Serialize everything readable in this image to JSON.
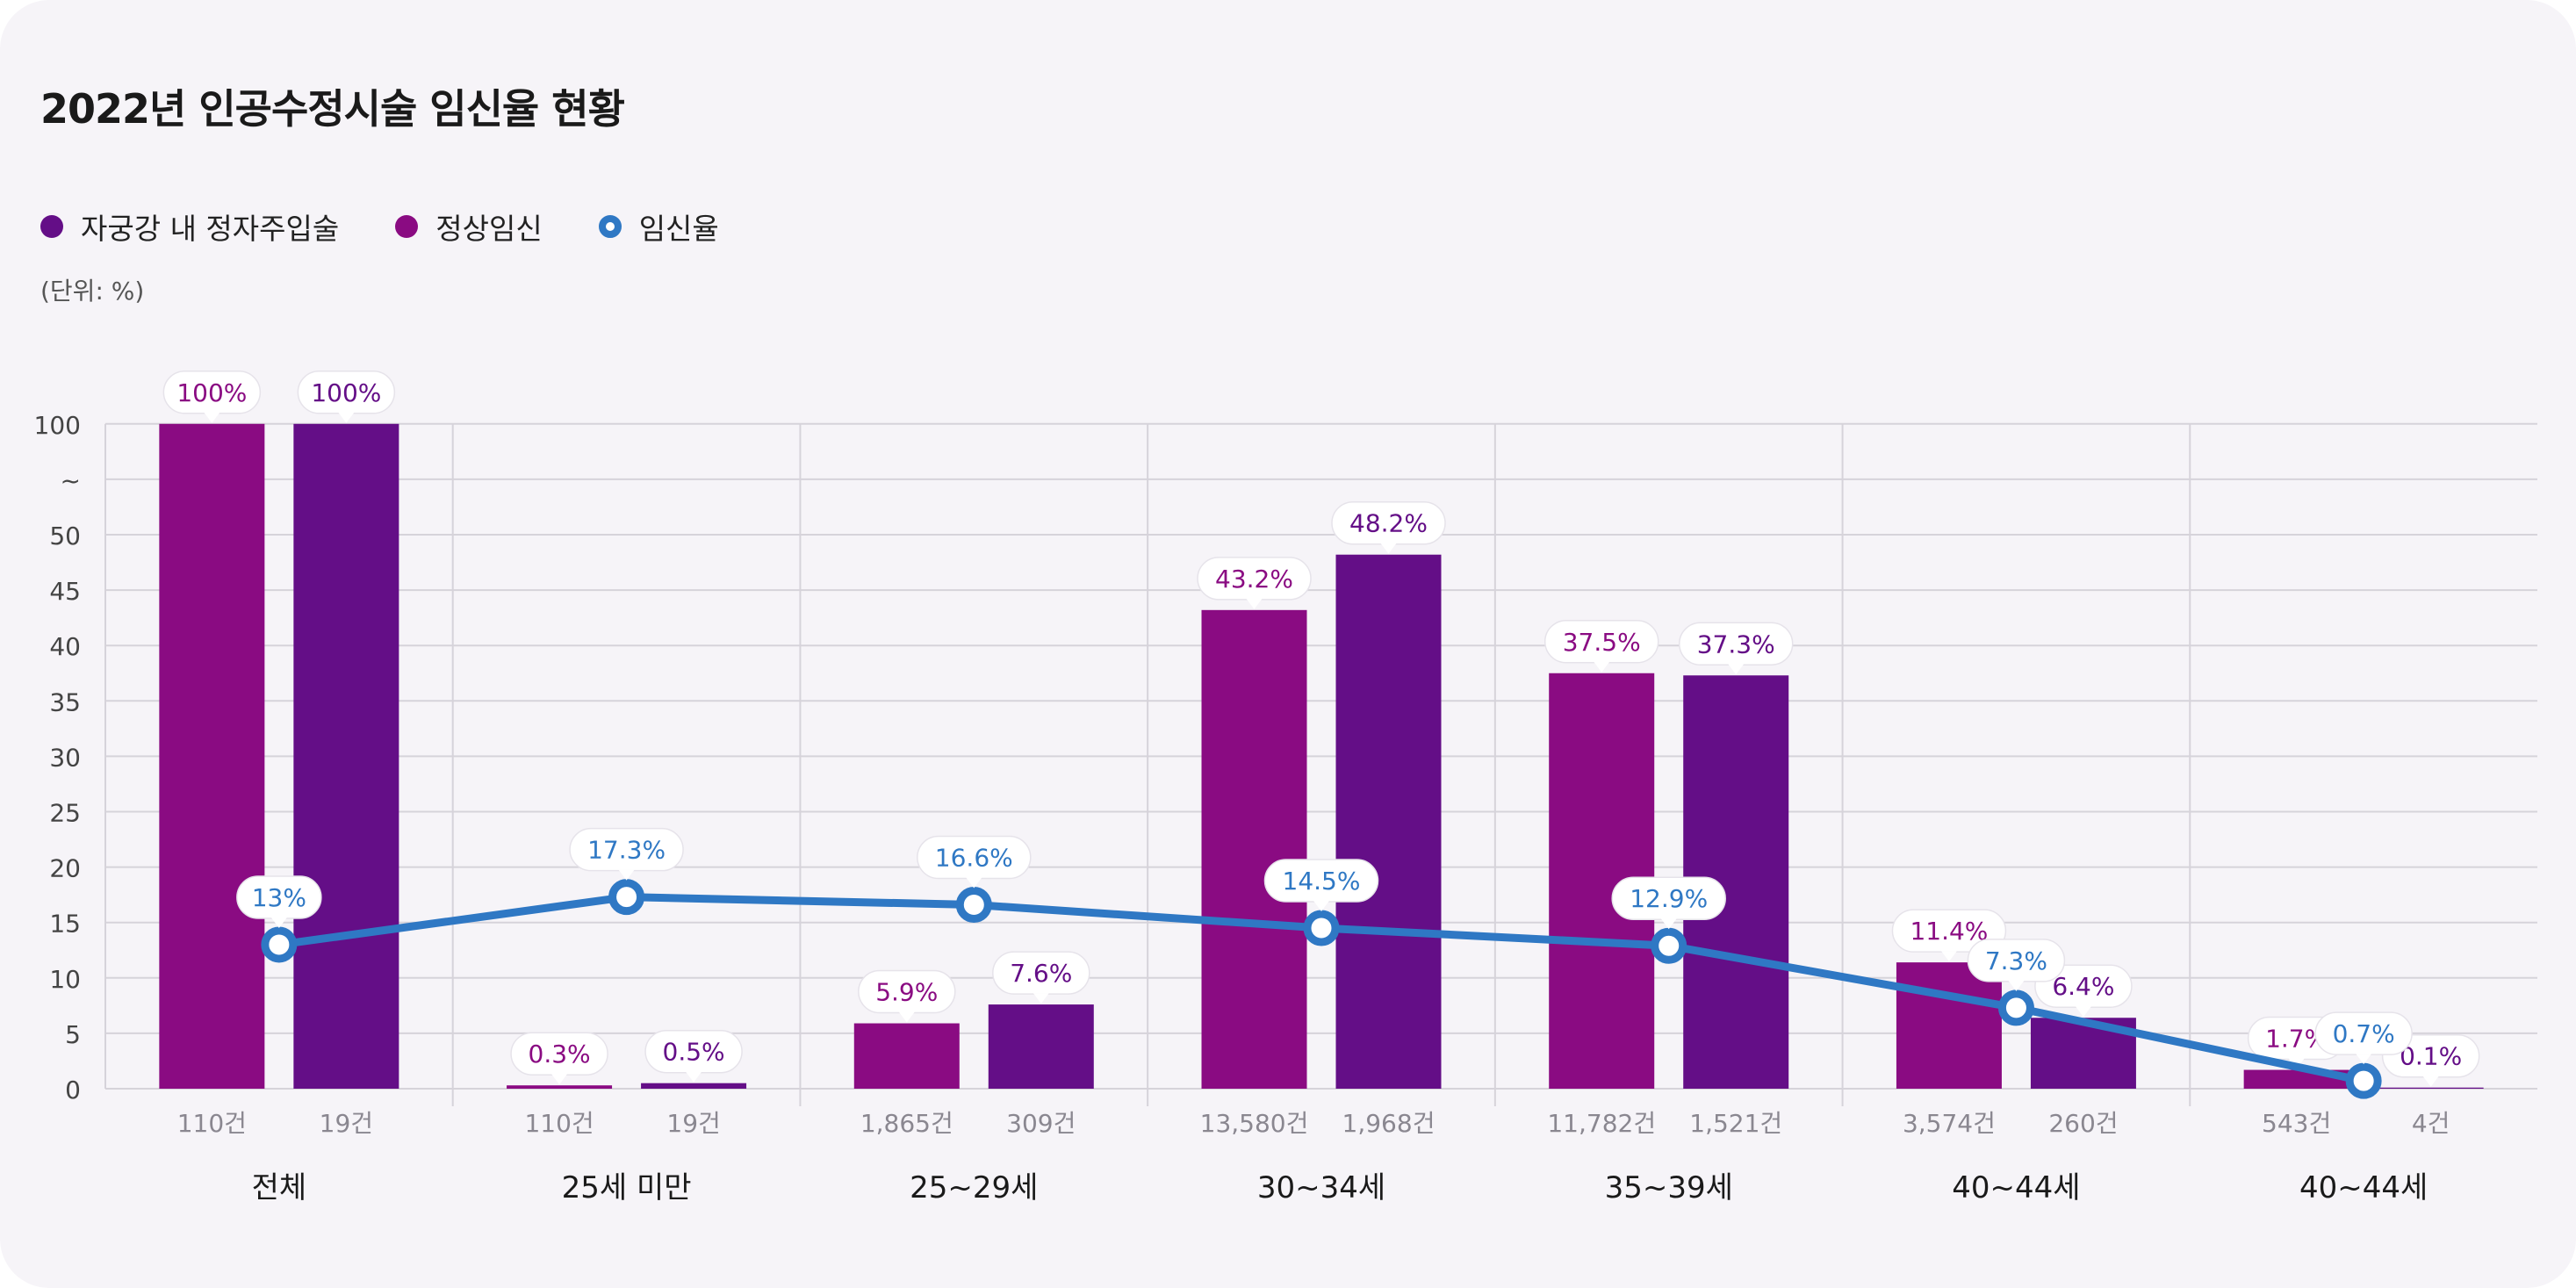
{
  "title": "2022년 인공수정시술 임신율 현황",
  "unit_label": "(단위: %)",
  "legend": [
    {
      "label": "자궁강 내 정자주입술",
      "color": "#640e87",
      "kind": "dot"
    },
    {
      "label": "정상임신",
      "color": "#8a0b82",
      "kind": "dot"
    },
    {
      "label": "임신율",
      "color": "#2f78c4",
      "kind": "ring"
    }
  ],
  "chart_data": {
    "type": "bar",
    "title": "2022년 인공수정시술 임신율 현황",
    "ylabel": "(단위: %)",
    "y_ticks": [
      "0",
      "5",
      "10",
      "15",
      "20",
      "25",
      "30",
      "35",
      "40",
      "45",
      "50",
      "~",
      "100"
    ],
    "categories": [
      "전체",
      "25세 미만",
      "25~29세",
      "30~34세",
      "35~39세",
      "40~44세",
      "40~44세"
    ],
    "series": [
      {
        "name": "정상임신",
        "color": "#8a0b82",
        "values": [
          100,
          0.3,
          5.9,
          43.2,
          37.5,
          11.4,
          1.7
        ],
        "labels": [
          "100%",
          "0.3%",
          "5.9%",
          "43.2%",
          "37.5%",
          "11.4%",
          "1.7%"
        ],
        "counts": [
          "110건",
          "110건",
          "1,865건",
          "13,580건",
          "11,782건",
          "3,574건",
          "543건"
        ]
      },
      {
        "name": "자궁강 내 정자주입술",
        "color": "#640e87",
        "values": [
          100,
          0.5,
          7.6,
          48.2,
          37.3,
          6.4,
          0.1
        ],
        "labels": [
          "100%",
          "0.5%",
          "7.6%",
          "48.2%",
          "37.3%",
          "6.4%",
          "0.1%"
        ],
        "counts": [
          "19건",
          "19건",
          "309건",
          "1,968건",
          "1,521건",
          "260건",
          "4건"
        ]
      }
    ],
    "line": {
      "name": "임신율",
      "color": "#2f78c4",
      "values": [
        13,
        17.3,
        16.6,
        14.5,
        12.9,
        7.3,
        0.7
      ],
      "labels": [
        "13%",
        "17.3%",
        "16.6%",
        "14.5%",
        "12.9%",
        "7.3%",
        "0.7%"
      ]
    },
    "axis_break": {
      "visible_max": 50,
      "break_label": "~",
      "top_value": 100
    },
    "ylim": [
      0,
      100
    ],
    "grid": true,
    "legend_position": "top-left"
  }
}
